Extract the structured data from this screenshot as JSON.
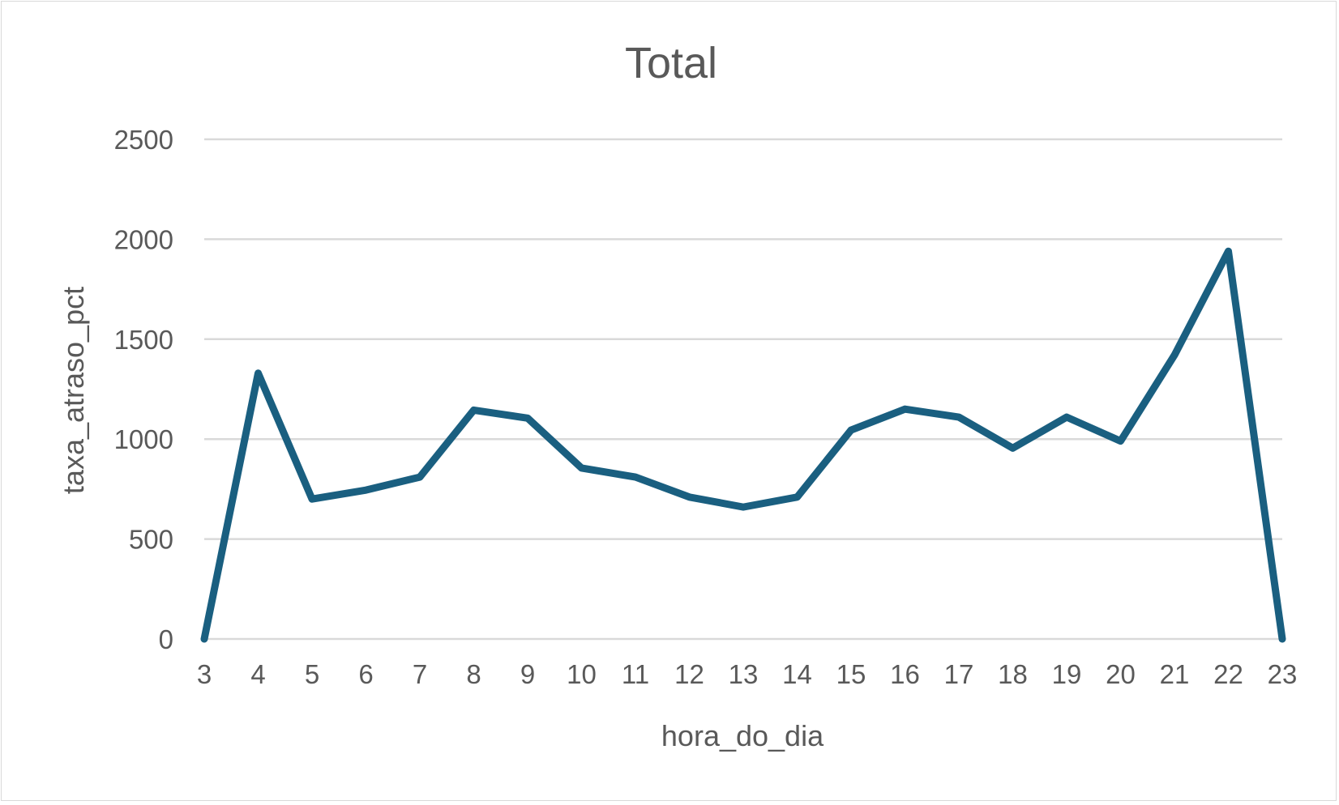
{
  "chart_data": {
    "type": "line",
    "title": "Total",
    "xlabel": "hora_do_dia",
    "ylabel": "taxa_atraso_pct",
    "x": [
      3,
      4,
      5,
      6,
      7,
      8,
      9,
      10,
      11,
      12,
      13,
      14,
      15,
      16,
      17,
      18,
      19,
      20,
      21,
      22,
      23
    ],
    "series": [
      {
        "values": [
          0,
          1330,
          700,
          745,
          810,
          1145,
          1105,
          855,
          810,
          710,
          660,
          710,
          1045,
          1150,
          1110,
          955,
          1110,
          990,
          1420,
          1940,
          0
        ],
        "color": "#1a5f80"
      }
    ],
    "ylim": [
      0,
      2500
    ],
    "yticks": [
      0,
      500,
      1000,
      1500,
      2000,
      2500
    ],
    "grid": true,
    "legend": "none"
  }
}
